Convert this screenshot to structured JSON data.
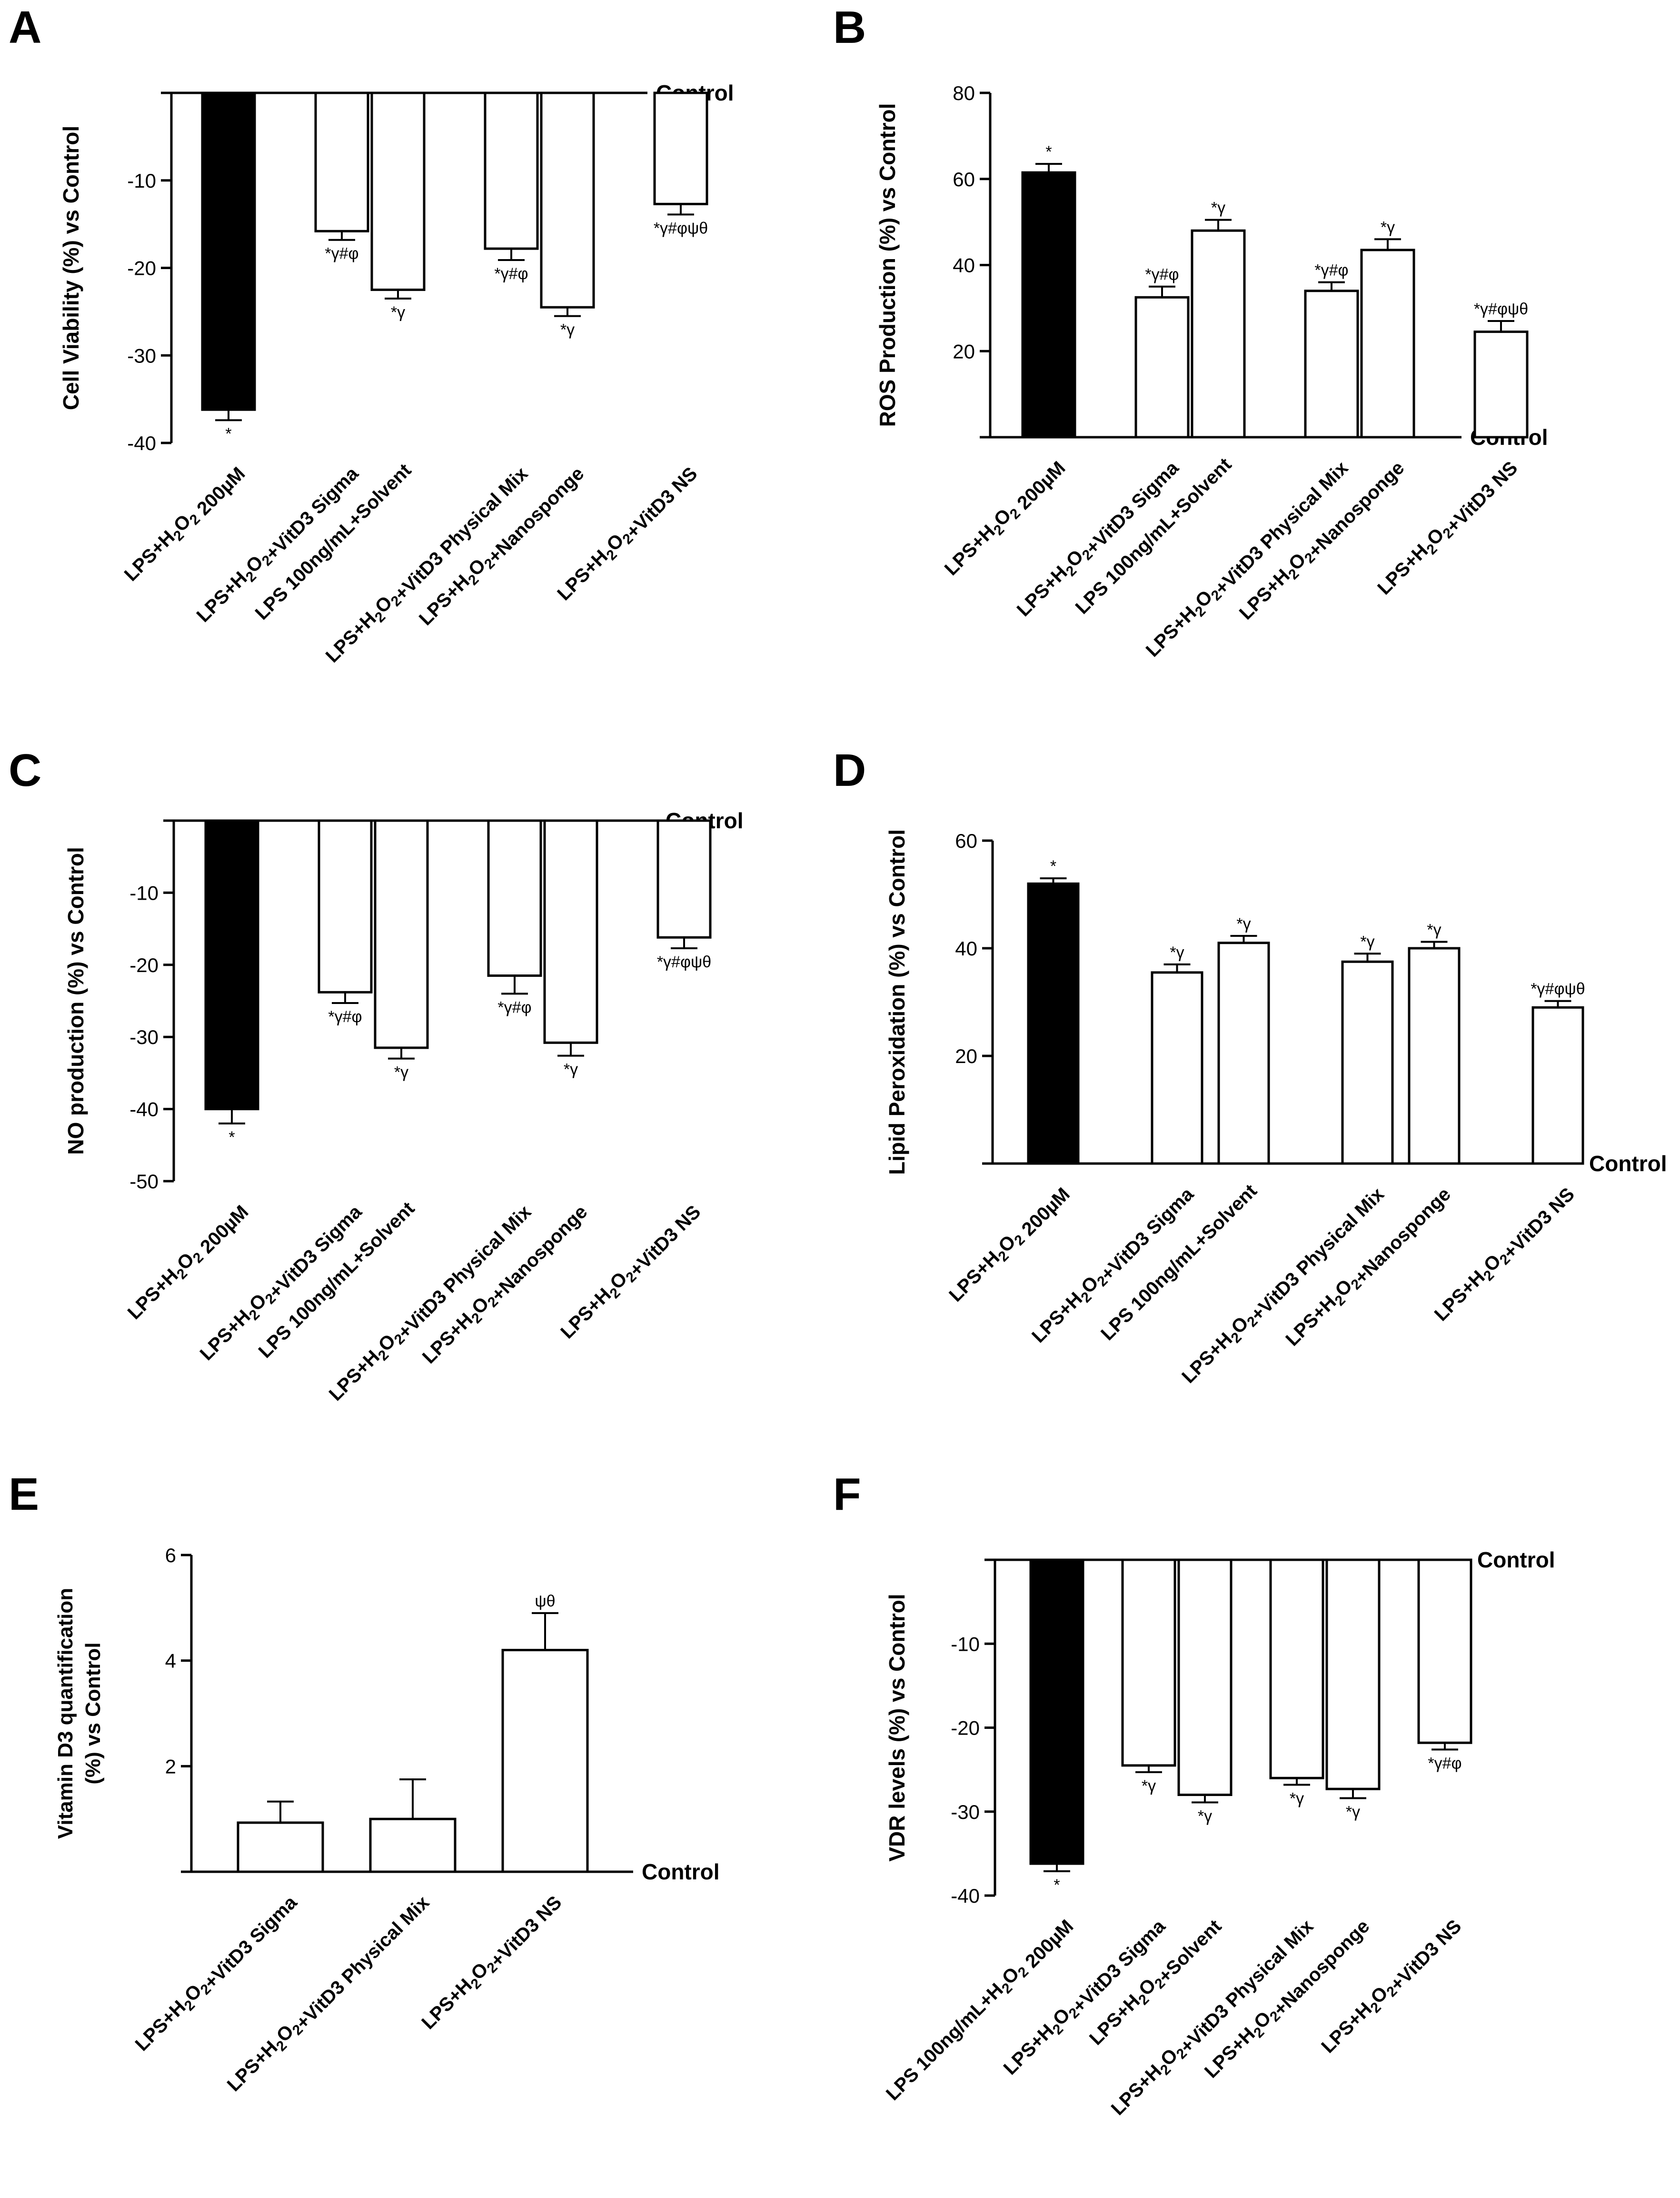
{
  "figure": {
    "style": {
      "bar_dark": "#000000",
      "bar_light": "#ffffff",
      "stroke": "#000000"
    }
  },
  "chart_data": [
    {
      "panel": "A",
      "type": "bar",
      "title": "",
      "ylabel": "Cell Viability (%) vs Control",
      "xlabel": "",
      "baseline_label": "Control",
      "ylim": [
        -40,
        0
      ],
      "yticks": [
        -10,
        -20,
        -30,
        -40
      ],
      "categories": [
        "LPS+H2O2 200µM",
        "LPS+H2O2+VitD3 Sigma",
        "LPS 100ng/mL+Solvent",
        "LPS+H2O2+VitD3 Physical Mix",
        "LPS+H2O2+Nanosponge",
        "LPS+H2O2+VitD3 NS"
      ],
      "values": [
        -36.2,
        -15.8,
        -22.5,
        -17.8,
        -24.5,
        -12.7
      ],
      "errors": [
        1.2,
        1.0,
        1.0,
        1.3,
        1.0,
        1.2
      ],
      "annotations": [
        "*",
        "*γ#φ",
        "*γ",
        "*γ#φ",
        "*γ",
        "*γ#φψθ"
      ],
      "bar_colors": [
        "#000000",
        "#ffffff",
        "#ffffff",
        "#ffffff",
        "#ffffff",
        "#ffffff"
      ]
    },
    {
      "panel": "B",
      "type": "bar",
      "title": "",
      "ylabel": "ROS Production (%) vs Control",
      "xlabel": "",
      "baseline_label": "Control",
      "ylim": [
        0,
        80
      ],
      "yticks": [
        20,
        40,
        60,
        80
      ],
      "categories": [
        "LPS+H2O2 200µM",
        "LPS+H2O2+VitD3 Sigma",
        "LPS 100ng/mL+Solvent",
        "LPS+H2O2+VitD3 Physical Mix",
        "LPS+H2O2+Nanosponge",
        "LPS+H2O2+VitD3 NS"
      ],
      "values": [
        61.5,
        32.5,
        48.0,
        34.0,
        43.5,
        24.5
      ],
      "errors": [
        2.0,
        2.5,
        2.5,
        2.0,
        2.5,
        2.5
      ],
      "annotations": [
        "*",
        "*γ#φ",
        "*γ",
        "*γ#φ",
        "*γ",
        "*γ#φψθ"
      ],
      "bar_colors": [
        "#000000",
        "#ffffff",
        "#ffffff",
        "#ffffff",
        "#ffffff",
        "#ffffff"
      ]
    },
    {
      "panel": "C",
      "type": "bar",
      "title": "",
      "ylabel": "NO production (%) vs Control",
      "xlabel": "",
      "baseline_label": "Control",
      "ylim": [
        -50,
        0
      ],
      "yticks": [
        -10,
        -20,
        -30,
        -40,
        -50
      ],
      "categories": [
        "LPS+H2O2 200µM",
        "LPS+H2O2+VitD3 Sigma",
        "LPS 100ng/mL+Solvent",
        "LPS+H2O2+VitD3 Physical Mix",
        "LPS+H2O2+Nanosponge",
        "LPS+H2O2+VitD3 NS"
      ],
      "values": [
        -40.0,
        -23.8,
        -31.5,
        -21.5,
        -30.8,
        -16.2
      ],
      "errors": [
        2.0,
        1.5,
        1.5,
        2.5,
        1.8,
        1.5
      ],
      "annotations": [
        "*",
        "*γ#φ",
        "*γ",
        "*γ#φ",
        "*γ",
        "*γ#φψθ"
      ],
      "bar_colors": [
        "#000000",
        "#ffffff",
        "#ffffff",
        "#ffffff",
        "#ffffff",
        "#ffffff"
      ]
    },
    {
      "panel": "D",
      "type": "bar",
      "title": "",
      "ylabel": "Lipid Peroxidation (%) vs Control",
      "xlabel": "",
      "baseline_label": "Control",
      "ylim": [
        0,
        60
      ],
      "yticks": [
        20,
        40,
        60
      ],
      "categories": [
        "LPS+H2O2 200µM",
        "LPS+H2O2+VitD3 Sigma",
        "LPS 100ng/mL+Solvent",
        "LPS+H2O2+VitD3 Physical Mix",
        "LPS+H2O2+Nanosponge",
        "LPS+H2O2+VitD3 NS"
      ],
      "values": [
        52.0,
        35.5,
        41.0,
        37.5,
        40.0,
        29.0
      ],
      "errors": [
        1.0,
        1.5,
        1.3,
        1.5,
        1.2,
        1.2
      ],
      "annotations": [
        "*",
        "*γ",
        "*γ",
        "*γ",
        "*γ",
        "*γ#φψθ"
      ],
      "bar_colors": [
        "#000000",
        "#ffffff",
        "#ffffff",
        "#ffffff",
        "#ffffff",
        "#ffffff"
      ]
    },
    {
      "panel": "E",
      "type": "bar",
      "title": "",
      "ylabel": "Vitamin D3 quantification (%) vs Control",
      "ylabel_lines": [
        "Vitamin D3 quantification",
        "(%) vs Control"
      ],
      "xlabel": "",
      "baseline_label": "Control",
      "ylim": [
        0,
        6
      ],
      "yticks": [
        2,
        4,
        6
      ],
      "categories": [
        "LPS+H2O2+VitD3 Sigma",
        "LPS+H2O2+VitD3 Physical Mix",
        "LPS+H2O2+VitD3 NS"
      ],
      "values": [
        0.93,
        1.0,
        4.2
      ],
      "errors": [
        0.4,
        0.75,
        0.7
      ],
      "annotations": [
        "",
        "",
        "ψθ"
      ],
      "bar_colors": [
        "#ffffff",
        "#ffffff",
        "#ffffff"
      ]
    },
    {
      "panel": "F",
      "type": "bar",
      "title": "",
      "ylabel": "VDR levels (%) vs Control",
      "xlabel": "",
      "baseline_label": "Control",
      "ylim": [
        -40,
        0
      ],
      "yticks": [
        -10,
        -20,
        -30,
        -40
      ],
      "categories": [
        "LPS 100ng/mL+H2O2 200µM",
        "LPS+H2O2+VitD3 Sigma",
        "LPS+H2O2+Solvent",
        "LPS+H2O2+VitD3 Physical Mix",
        "LPS+H2O2+Nanosponge",
        "LPS+H2O2+VitD3 NS"
      ],
      "values": [
        -36.2,
        -24.5,
        -28.0,
        -26.0,
        -27.3,
        -21.8
      ],
      "errors": [
        0.9,
        0.8,
        0.9,
        0.8,
        1.1,
        0.8
      ],
      "annotations": [
        "*",
        "*γ",
        "*γ",
        "*γ",
        "*γ",
        "*γ#φ"
      ],
      "bar_colors": [
        "#000000",
        "#ffffff",
        "#ffffff",
        "#ffffff",
        "#ffffff",
        "#ffffff"
      ]
    }
  ]
}
